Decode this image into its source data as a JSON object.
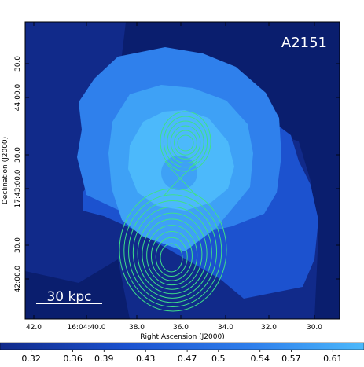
{
  "chart_data": {
    "type": "heatmap",
    "title": "A2151",
    "xlabel": "Right Ascension (J2000)",
    "ylabel": "Declination (J2000)",
    "x_ticks": [
      "42.0",
      "16:04:40.0",
      "38.0",
      "36.0",
      "34.0",
      "32.0",
      "30.0"
    ],
    "y_ticks": [
      "42:00.0",
      "30.0",
      "17:43:00.0",
      "30.0",
      "44:00.0",
      "30.0"
    ],
    "scale_bar_label": "30 kpc",
    "colorbar": {
      "ticks": [
        0.32,
        0.36,
        0.39,
        0.43,
        0.47,
        0.5,
        0.54,
        0.57,
        0.61
      ],
      "range": [
        0.29,
        0.64
      ]
    },
    "colors": {
      "background": "#112a8a",
      "darkest": "#0a1e6e",
      "level1": "#1c52cf",
      "level2": "#2f80ec",
      "level3": "#3ea1f6",
      "level4": "#4cb9fb",
      "contour": "#3ee08a"
    },
    "contours": {
      "north_component_levels": 6,
      "south_component_levels": 10
    }
  }
}
